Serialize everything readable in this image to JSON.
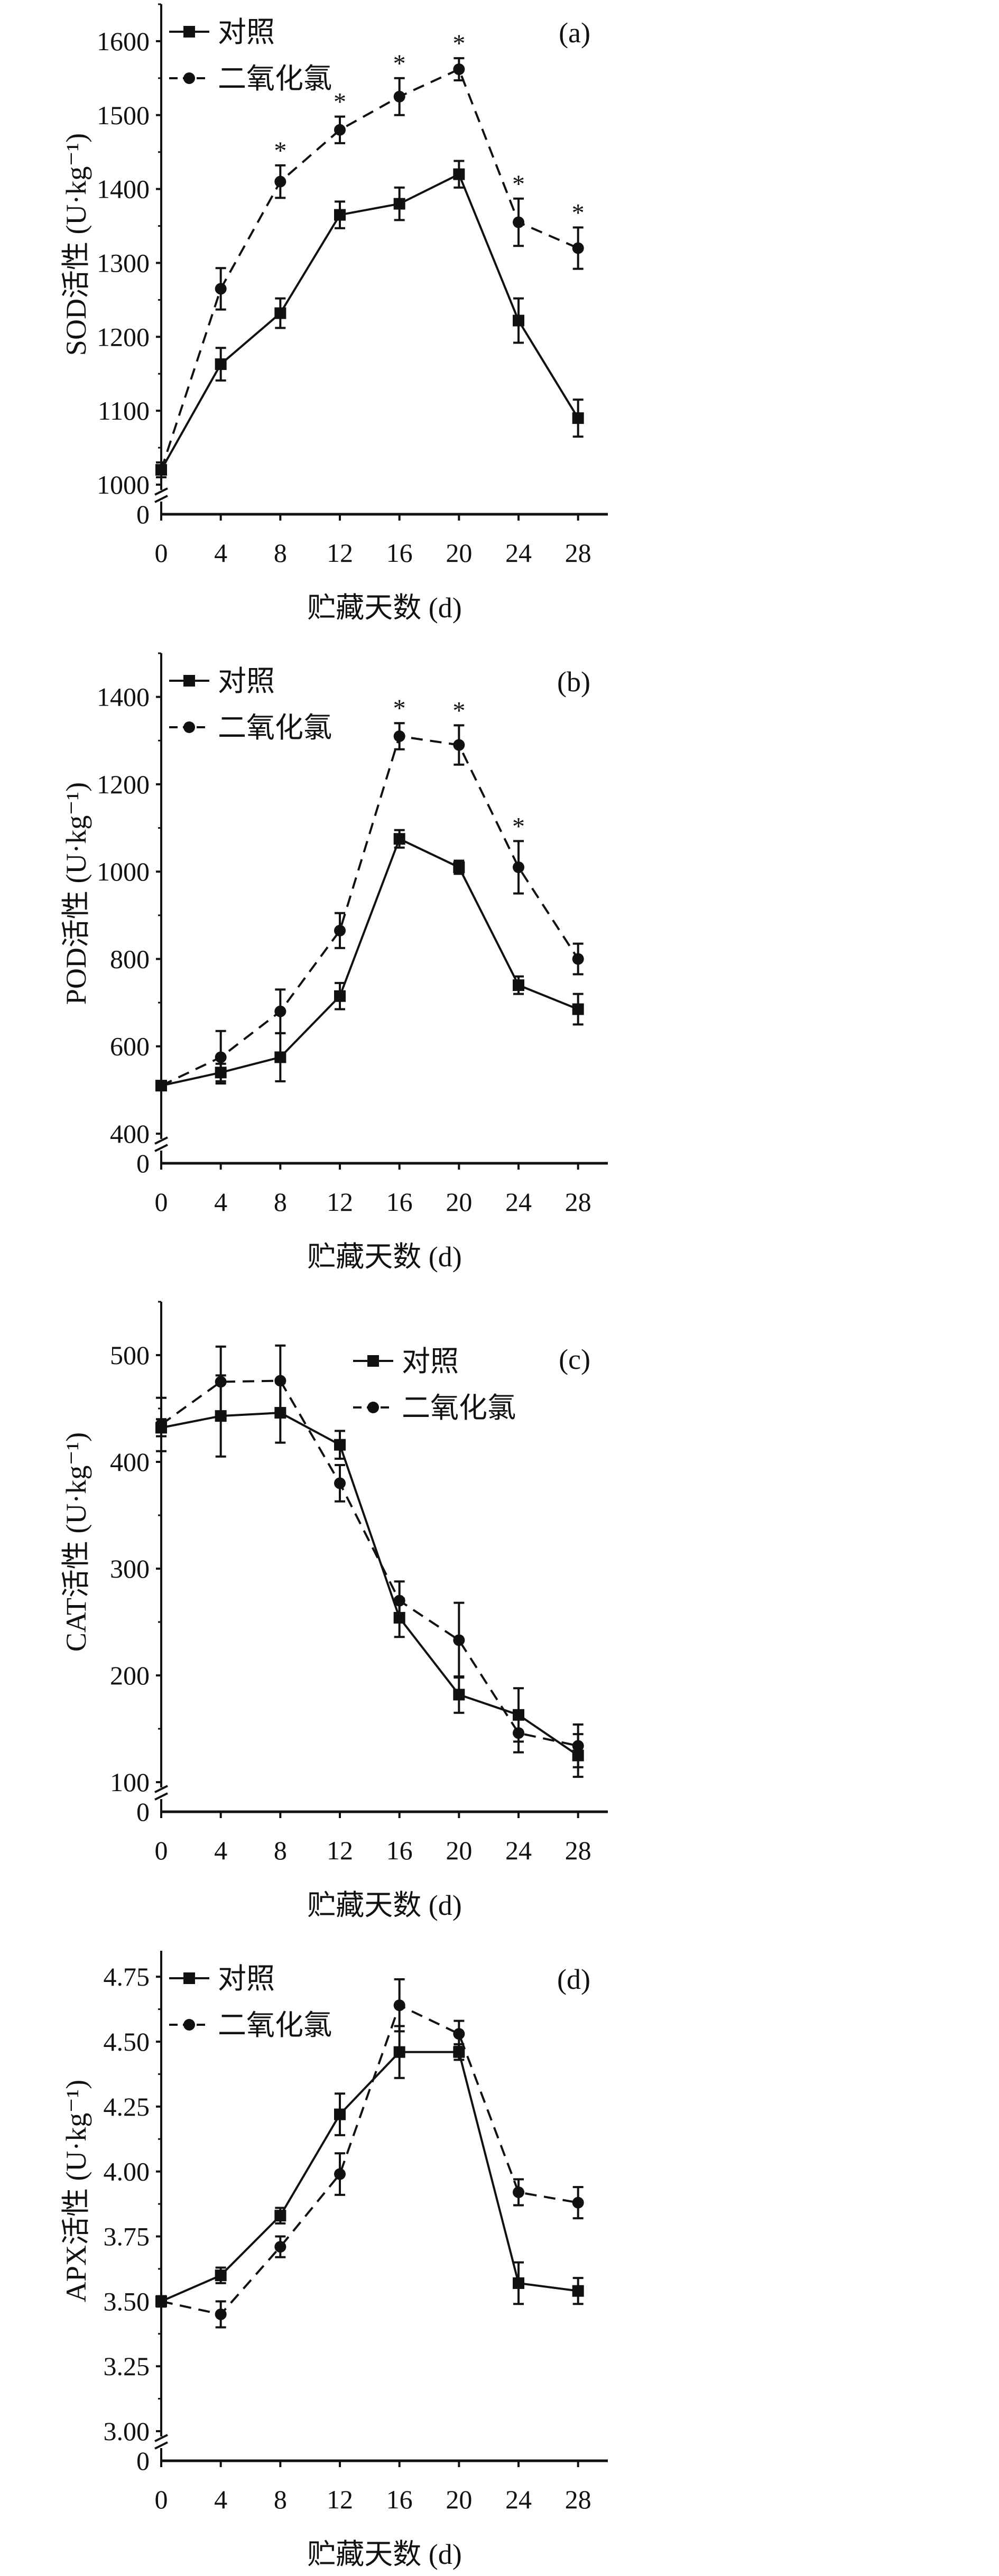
{
  "chart_data": [
    {
      "type": "line",
      "panel_label": "(a)",
      "ylabel": "SOD活性 (U·kg⁻¹)",
      "xlabel": "贮藏天数 (d)",
      "x": [
        0,
        4,
        8,
        12,
        16,
        20,
        24,
        28
      ],
      "xlim": [
        0,
        30
      ],
      "ylim": [
        1000,
        1650
      ],
      "yticks": [
        1000,
        1100,
        1200,
        1300,
        1400,
        1500,
        1600
      ],
      "axis_break": true,
      "legend": "top-left",
      "series": [
        {
          "name": "对照",
          "marker": "square",
          "style": "solid",
          "values": [
            1020,
            1163,
            1232,
            1365,
            1380,
            1420,
            1222,
            1090
          ],
          "errors": [
            10,
            22,
            20,
            18,
            22,
            18,
            30,
            25
          ]
        },
        {
          "name": "二氧化氯",
          "marker": "circle",
          "style": "dashed",
          "values": [
            1020,
            1265,
            1410,
            1480,
            1525,
            1562,
            1355,
            1320
          ],
          "errors": [
            10,
            28,
            22,
            18,
            25,
            15,
            32,
            28
          ]
        }
      ],
      "significance": {
        "marker": "*",
        "x": [
          8,
          12,
          16,
          20,
          24,
          28
        ]
      }
    },
    {
      "type": "line",
      "panel_label": "(b)",
      "ylabel": "POD活性 (U·kg⁻¹)",
      "xlabel": "贮藏天数 (d)",
      "x": [
        0,
        4,
        8,
        12,
        16,
        20,
        24,
        28
      ],
      "xlim": [
        0,
        30
      ],
      "ylim": [
        400,
        1500
      ],
      "yticks": [
        400,
        600,
        800,
        1000,
        1200,
        1400
      ],
      "axis_break": true,
      "legend": "top-left",
      "series": [
        {
          "name": "对照",
          "marker": "square",
          "style": "solid",
          "values": [
            510,
            540,
            575,
            715,
            1075,
            1010,
            740,
            685
          ],
          "errors": [
            10,
            20,
            55,
            30,
            20,
            15,
            20,
            35
          ]
        },
        {
          "name": "二氧化氯",
          "marker": "circle",
          "style": "dashed",
          "values": [
            510,
            575,
            680,
            865,
            1310,
            1290,
            1010,
            800
          ],
          "errors": [
            10,
            60,
            50,
            40,
            30,
            45,
            60,
            35
          ]
        }
      ],
      "significance": {
        "marker": "*",
        "x": [
          16,
          20,
          24
        ]
      }
    },
    {
      "type": "line",
      "panel_label": "(c)",
      "ylabel": "CAT活性 (U·kg⁻¹)",
      "xlabel": "贮藏天数 (d)",
      "x": [
        0,
        4,
        8,
        12,
        16,
        20,
        24,
        28
      ],
      "xlim": [
        0,
        30
      ],
      "ylim": [
        100,
        550
      ],
      "yticks": [
        100,
        200,
        300,
        400,
        500
      ],
      "axis_break": true,
      "legend": "top-center",
      "series": [
        {
          "name": "对照",
          "marker": "square",
          "style": "solid",
          "values": [
            432,
            443,
            446,
            416,
            254,
            182,
            163,
            125
          ],
          "errors": [
            8,
            38,
            28,
            13,
            18,
            17,
            25,
            20
          ]
        },
        {
          "name": "二氧化氯",
          "marker": "circle",
          "style": "dashed",
          "values": [
            435,
            475,
            476,
            380,
            270,
            233,
            146,
            134
          ],
          "errors": [
            25,
            33,
            33,
            17,
            18,
            35,
            18,
            20
          ]
        }
      ],
      "significance": {
        "marker": "*",
        "x": []
      }
    },
    {
      "type": "line",
      "panel_label": "(d)",
      "ylabel": "APX活性 (U·kg⁻¹)",
      "xlabel": "贮藏天数 (d)",
      "x": [
        0,
        4,
        8,
        12,
        16,
        20,
        24,
        28
      ],
      "xlim": [
        0,
        30
      ],
      "ylim": [
        3.0,
        4.85
      ],
      "yticks": [
        "3.00",
        "3.25",
        "3.50",
        "3.75",
        "4.00",
        "4.25",
        "4.50",
        "4.75"
      ],
      "axis_break": true,
      "legend": "top-left",
      "series": [
        {
          "name": "对照",
          "marker": "square",
          "style": "solid",
          "values": [
            3.5,
            3.6,
            3.83,
            4.22,
            4.46,
            4.46,
            3.57,
            3.54
          ],
          "errors": [
            0.02,
            0.03,
            0.03,
            0.08,
            0.1,
            0.03,
            0.08,
            0.05
          ]
        },
        {
          "name": "二氧化氯",
          "marker": "circle",
          "style": "dashed",
          "values": [
            3.5,
            3.45,
            3.71,
            3.99,
            4.64,
            4.53,
            3.92,
            3.88
          ],
          "errors": [
            0.02,
            0.05,
            0.04,
            0.08,
            0.1,
            0.05,
            0.05,
            0.06
          ]
        }
      ],
      "significance": {
        "marker": "*",
        "x": []
      }
    }
  ]
}
